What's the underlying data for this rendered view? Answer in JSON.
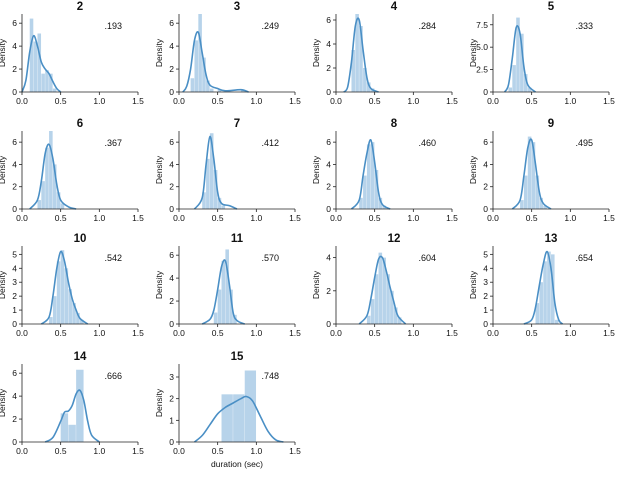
{
  "chart_data": {
    "type": "histogram_kde_grid",
    "colors": {
      "bar": "#b7d3ea",
      "kde": "#4a8fc5",
      "axis": "#222222"
    },
    "shared": {
      "xlim": [
        0,
        1.5
      ],
      "xticks": [
        0.0,
        0.5,
        1.0,
        1.5
      ],
      "xtick_labels": [
        "0.0",
        "0.5",
        "1.0",
        "1.5"
      ],
      "ylabel": "Density",
      "xlabel": "duration (sec)"
    },
    "panels": [
      {
        "title": "2",
        "annotation": ".193",
        "ylim": [
          0,
          6.8
        ],
        "yticks": [
          0,
          2,
          4,
          6
        ],
        "ytick_labels": [
          "0",
          "2",
          "4",
          "6"
        ],
        "bin_width": 0.05,
        "bins": [
          [
            0.1,
            6.4
          ],
          [
            0.15,
            4.4
          ],
          [
            0.2,
            5.1
          ],
          [
            0.25,
            1.6
          ],
          [
            0.3,
            1.9
          ],
          [
            0.35,
            1.6
          ],
          [
            0.4,
            0.3
          ]
        ],
        "kde": [
          [
            0.0,
            0.0
          ],
          [
            0.05,
            1.0
          ],
          [
            0.1,
            3.5
          ],
          [
            0.15,
            4.9
          ],
          [
            0.2,
            4.0
          ],
          [
            0.25,
            2.6
          ],
          [
            0.3,
            2.0
          ],
          [
            0.35,
            1.6
          ],
          [
            0.4,
            0.9
          ],
          [
            0.45,
            0.3
          ],
          [
            0.5,
            0.0
          ]
        ]
      },
      {
        "title": "3",
        "annotation": ".249",
        "ylim": [
          0,
          6.8
        ],
        "yticks": [
          0,
          2,
          4,
          6
        ],
        "ytick_labels": [
          "0",
          "2",
          "4",
          "6"
        ],
        "bin_width": 0.05,
        "bins": [
          [
            0.15,
            1.2
          ],
          [
            0.2,
            4.5
          ],
          [
            0.25,
            6.8
          ],
          [
            0.3,
            3.0
          ],
          [
            0.35,
            1.0
          ],
          [
            0.4,
            0.3
          ],
          [
            0.5,
            0.2
          ],
          [
            0.8,
            0.15
          ]
        ],
        "kde": [
          [
            0.05,
            0.0
          ],
          [
            0.1,
            0.5
          ],
          [
            0.15,
            2.0
          ],
          [
            0.2,
            4.5
          ],
          [
            0.25,
            5.2
          ],
          [
            0.3,
            3.4
          ],
          [
            0.35,
            1.5
          ],
          [
            0.4,
            0.6
          ],
          [
            0.5,
            0.3
          ],
          [
            0.6,
            0.1
          ],
          [
            0.8,
            0.2
          ],
          [
            0.9,
            0.0
          ]
        ]
      },
      {
        "title": "4",
        "annotation": ".284",
        "ylim": [
          0,
          6.5
        ],
        "yticks": [
          0,
          2,
          4,
          6
        ],
        "ytick_labels": [
          "0",
          "2",
          "4",
          "6"
        ],
        "bin_width": 0.05,
        "bins": [
          [
            0.2,
            3.5
          ],
          [
            0.25,
            6.5
          ],
          [
            0.3,
            5.5
          ],
          [
            0.35,
            2.0
          ],
          [
            0.4,
            0.8
          ],
          [
            0.45,
            0.3
          ]
        ],
        "kde": [
          [
            0.1,
            0.0
          ],
          [
            0.15,
            0.4
          ],
          [
            0.2,
            2.5
          ],
          [
            0.25,
            5.5
          ],
          [
            0.3,
            6.0
          ],
          [
            0.35,
            3.5
          ],
          [
            0.4,
            1.2
          ],
          [
            0.45,
            0.3
          ],
          [
            0.55,
            0.0
          ]
        ]
      },
      {
        "title": "5",
        "annotation": ".333",
        "ylim": [
          0,
          8.7
        ],
        "yticks": [
          0,
          2.5,
          5.0,
          7.5
        ],
        "ytick_labels": [
          "0",
          "2.5",
          "5.0",
          "7.5"
        ],
        "bin_width": 0.05,
        "bins": [
          [
            0.2,
            0.5
          ],
          [
            0.25,
            3.0
          ],
          [
            0.3,
            8.3
          ],
          [
            0.35,
            6.5
          ],
          [
            0.4,
            2.0
          ],
          [
            0.45,
            0.5
          ]
        ],
        "kde": [
          [
            0.15,
            0.0
          ],
          [
            0.2,
            0.8
          ],
          [
            0.25,
            3.8
          ],
          [
            0.3,
            7.2
          ],
          [
            0.35,
            6.5
          ],
          [
            0.4,
            2.8
          ],
          [
            0.45,
            0.8
          ],
          [
            0.55,
            0.0
          ]
        ]
      },
      {
        "title": "6",
        "annotation": ".367",
        "ylim": [
          0,
          7.0
        ],
        "yticks": [
          0,
          2,
          4,
          6
        ],
        "ytick_labels": [
          "0",
          "2",
          "4",
          "6"
        ],
        "bin_width": 0.05,
        "bins": [
          [
            0.2,
            0.8
          ],
          [
            0.25,
            2.5
          ],
          [
            0.3,
            5.5
          ],
          [
            0.35,
            7.0
          ],
          [
            0.4,
            4.0
          ],
          [
            0.45,
            1.5
          ],
          [
            0.5,
            0.5
          ]
        ],
        "kde": [
          [
            0.1,
            0.0
          ],
          [
            0.2,
            0.8
          ],
          [
            0.25,
            2.5
          ],
          [
            0.3,
            5.0
          ],
          [
            0.35,
            5.8
          ],
          [
            0.4,
            4.5
          ],
          [
            0.45,
            2.2
          ],
          [
            0.5,
            0.8
          ],
          [
            0.6,
            0.2
          ],
          [
            0.7,
            0.0
          ]
        ]
      },
      {
        "title": "7",
        "annotation": ".412",
        "ylim": [
          0,
          7.0
        ],
        "yticks": [
          0,
          2,
          4,
          6
        ],
        "ytick_labels": [
          "0",
          "2",
          "4",
          "6"
        ],
        "bin_width": 0.05,
        "bins": [
          [
            0.3,
            1.5
          ],
          [
            0.35,
            4.5
          ],
          [
            0.4,
            6.8
          ],
          [
            0.45,
            3.5
          ],
          [
            0.5,
            1.0
          ],
          [
            0.55,
            0.3
          ]
        ],
        "kde": [
          [
            0.2,
            0.0
          ],
          [
            0.3,
            1.0
          ],
          [
            0.35,
            4.0
          ],
          [
            0.4,
            6.5
          ],
          [
            0.45,
            4.5
          ],
          [
            0.5,
            1.5
          ],
          [
            0.55,
            0.5
          ],
          [
            0.65,
            0.3
          ],
          [
            0.75,
            0.0
          ]
        ]
      },
      {
        "title": "8",
        "annotation": ".460",
        "ylim": [
          0,
          7.0
        ],
        "yticks": [
          0,
          2,
          4,
          6
        ],
        "ytick_labels": [
          "0",
          "2",
          "4",
          "6"
        ],
        "bin_width": 0.05,
        "bins": [
          [
            0.3,
            1.0
          ],
          [
            0.35,
            3.0
          ],
          [
            0.4,
            5.8
          ],
          [
            0.45,
            6.0
          ],
          [
            0.5,
            3.5
          ],
          [
            0.55,
            1.0
          ],
          [
            0.6,
            0.3
          ]
        ],
        "kde": [
          [
            0.2,
            0.0
          ],
          [
            0.3,
            0.8
          ],
          [
            0.35,
            3.0
          ],
          [
            0.4,
            5.0
          ],
          [
            0.45,
            6.2
          ],
          [
            0.5,
            4.2
          ],
          [
            0.55,
            1.5
          ],
          [
            0.6,
            0.4
          ],
          [
            0.7,
            0.0
          ]
        ]
      },
      {
        "title": "9",
        "annotation": ".495",
        "ylim": [
          0,
          7.0
        ],
        "yticks": [
          0,
          2,
          4,
          6
        ],
        "ytick_labels": [
          "0",
          "2",
          "4",
          "6"
        ],
        "bin_width": 0.05,
        "bins": [
          [
            0.35,
            0.8
          ],
          [
            0.4,
            3.0
          ],
          [
            0.45,
            6.5
          ],
          [
            0.5,
            6.0
          ],
          [
            0.55,
            3.0
          ],
          [
            0.6,
            1.0
          ],
          [
            0.65,
            0.3
          ]
        ],
        "kde": [
          [
            0.25,
            0.0
          ],
          [
            0.35,
            0.8
          ],
          [
            0.4,
            3.0
          ],
          [
            0.45,
            5.5
          ],
          [
            0.5,
            6.2
          ],
          [
            0.55,
            4.0
          ],
          [
            0.6,
            1.5
          ],
          [
            0.65,
            0.5
          ],
          [
            0.75,
            0.0
          ]
        ]
      },
      {
        "title": "10",
        "annotation": ".542",
        "ylim": [
          0,
          5.6
        ],
        "yticks": [
          0,
          1,
          2,
          3,
          4,
          5
        ],
        "ytick_labels": [
          "0",
          "1",
          "2",
          "3",
          "4",
          "5"
        ],
        "bin_width": 0.05,
        "bins": [
          [
            0.35,
            0.5
          ],
          [
            0.4,
            2.0
          ],
          [
            0.45,
            4.5
          ],
          [
            0.5,
            5.3
          ],
          [
            0.55,
            4.0
          ],
          [
            0.6,
            2.5
          ],
          [
            0.65,
            1.5
          ],
          [
            0.7,
            0.8
          ],
          [
            0.75,
            0.3
          ]
        ],
        "kde": [
          [
            0.25,
            0.0
          ],
          [
            0.35,
            0.5
          ],
          [
            0.4,
            2.0
          ],
          [
            0.45,
            4.0
          ],
          [
            0.5,
            5.2
          ],
          [
            0.55,
            4.5
          ],
          [
            0.6,
            3.0
          ],
          [
            0.65,
            1.8
          ],
          [
            0.7,
            1.0
          ],
          [
            0.75,
            0.4
          ],
          [
            0.85,
            0.0
          ]
        ]
      },
      {
        "title": "11",
        "annotation": ".570",
        "ylim": [
          0,
          6.8
        ],
        "yticks": [
          0,
          2,
          4,
          6
        ],
        "ytick_labels": [
          "0",
          "2",
          "4",
          "6"
        ],
        "bin_width": 0.05,
        "bins": [
          [
            0.45,
            1.0
          ],
          [
            0.5,
            3.0
          ],
          [
            0.55,
            5.5
          ],
          [
            0.6,
            6.5
          ],
          [
            0.65,
            3.0
          ],
          [
            0.7,
            0.8
          ]
        ],
        "kde": [
          [
            0.3,
            0.0
          ],
          [
            0.4,
            0.4
          ],
          [
            0.45,
            1.2
          ],
          [
            0.5,
            3.0
          ],
          [
            0.55,
            5.0
          ],
          [
            0.6,
            5.5
          ],
          [
            0.65,
            3.5
          ],
          [
            0.7,
            1.0
          ],
          [
            0.75,
            0.3
          ],
          [
            0.85,
            0.0
          ]
        ]
      },
      {
        "title": "12",
        "annotation": ".604",
        "ylim": [
          0,
          4.7
        ],
        "yticks": [
          0,
          2,
          4
        ],
        "ytick_labels": [
          "0",
          "2",
          "4"
        ],
        "bin_width": 0.05,
        "bins": [
          [
            0.4,
            0.5
          ],
          [
            0.45,
            1.5
          ],
          [
            0.5,
            3.0
          ],
          [
            0.55,
            4.3
          ],
          [
            0.6,
            4.0
          ],
          [
            0.65,
            3.0
          ],
          [
            0.7,
            2.0
          ],
          [
            0.75,
            1.0
          ],
          [
            0.8,
            0.4
          ]
        ],
        "kde": [
          [
            0.3,
            0.0
          ],
          [
            0.4,
            0.5
          ],
          [
            0.45,
            1.5
          ],
          [
            0.5,
            2.8
          ],
          [
            0.55,
            3.9
          ],
          [
            0.6,
            4.0
          ],
          [
            0.65,
            3.2
          ],
          [
            0.7,
            2.2
          ],
          [
            0.75,
            1.3
          ],
          [
            0.8,
            0.5
          ],
          [
            0.9,
            0.0
          ]
        ]
      },
      {
        "title": "13",
        "annotation": ".654",
        "ylim": [
          0,
          5.6
        ],
        "yticks": [
          0,
          1,
          2,
          3,
          4,
          5
        ],
        "ytick_labels": [
          "0",
          "1",
          "2",
          "3",
          "4",
          "5"
        ],
        "bin_width": 0.05,
        "bins": [
          [
            0.55,
            1.5
          ],
          [
            0.6,
            3.0
          ],
          [
            0.65,
            4.5
          ],
          [
            0.7,
            5.2
          ],
          [
            0.75,
            5.0
          ],
          [
            0.8,
            0.3
          ]
        ],
        "kde": [
          [
            0.4,
            0.0
          ],
          [
            0.5,
            0.3
          ],
          [
            0.55,
            1.2
          ],
          [
            0.6,
            2.8
          ],
          [
            0.65,
            4.3
          ],
          [
            0.7,
            5.2
          ],
          [
            0.75,
            4.0
          ],
          [
            0.8,
            1.5
          ],
          [
            0.85,
            0.3
          ],
          [
            0.9,
            0.0
          ]
        ]
      },
      {
        "title": "14",
        "annotation": ".666",
        "ylim": [
          0,
          6.8
        ],
        "yticks": [
          0,
          2,
          4,
          6
        ],
        "ytick_labels": [
          "0",
          "2",
          "4",
          "6"
        ],
        "bin_width": 0.1,
        "bins": [
          [
            0.5,
            2.5
          ],
          [
            0.6,
            1.5
          ],
          [
            0.7,
            6.3
          ]
        ],
        "kde": [
          [
            0.3,
            0.0
          ],
          [
            0.4,
            0.4
          ],
          [
            0.5,
            1.8
          ],
          [
            0.55,
            2.6
          ],
          [
            0.6,
            2.7
          ],
          [
            0.65,
            3.2
          ],
          [
            0.7,
            4.2
          ],
          [
            0.75,
            4.5
          ],
          [
            0.8,
            3.6
          ],
          [
            0.85,
            1.8
          ],
          [
            0.9,
            0.6
          ],
          [
            1.0,
            0.0
          ]
        ]
      },
      {
        "title": "15",
        "annotation": ".748",
        "ylim": [
          0,
          3.6
        ],
        "yticks": [
          0,
          1,
          2,
          3
        ],
        "ytick_labels": [
          "0",
          "1",
          "2",
          "3"
        ],
        "bin_width": 0.15,
        "bins": [
          [
            0.55,
            2.2
          ],
          [
            0.7,
            2.2
          ],
          [
            0.85,
            3.3
          ]
        ],
        "kde": [
          [
            0.2,
            0.0
          ],
          [
            0.3,
            0.3
          ],
          [
            0.4,
            0.8
          ],
          [
            0.5,
            1.3
          ],
          [
            0.6,
            1.6
          ],
          [
            0.7,
            1.8
          ],
          [
            0.8,
            2.0
          ],
          [
            0.87,
            2.1
          ],
          [
            0.95,
            1.9
          ],
          [
            1.05,
            1.2
          ],
          [
            1.15,
            0.5
          ],
          [
            1.25,
            0.1
          ],
          [
            1.35,
            0.0
          ]
        ]
      }
    ]
  }
}
